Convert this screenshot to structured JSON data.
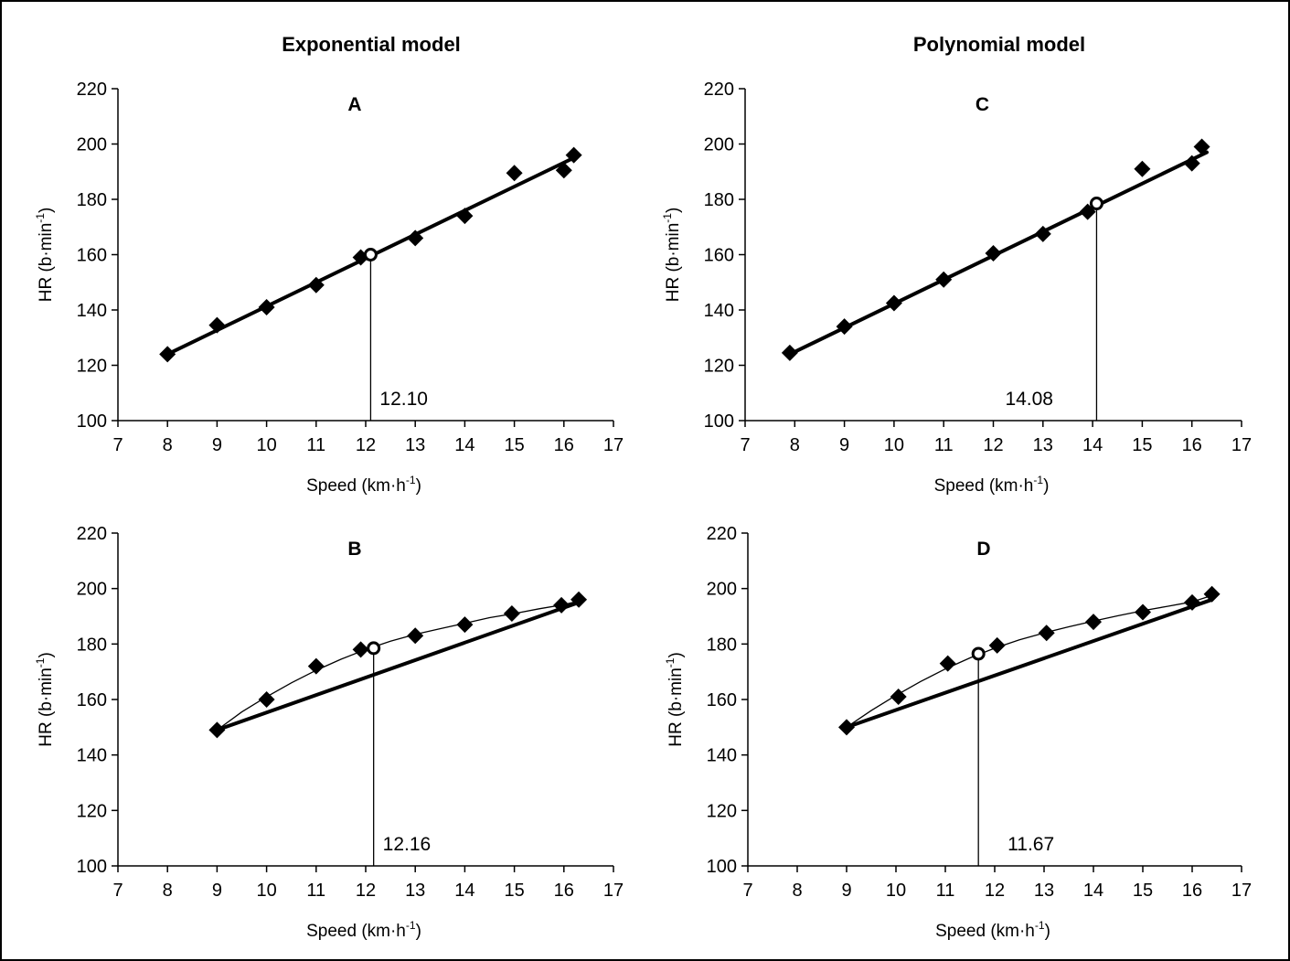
{
  "column_titles": [
    "Exponential model",
    "Polynomial model"
  ],
  "colors": {
    "ink": "#000000",
    "background": "#ffffff"
  },
  "chart_data": [
    {
      "type": "scatter",
      "panel": "A",
      "column": 0,
      "xlabel": "Speed (km·h",
      "xlabel_sup": "-1",
      "ylabel": "HR (b·min",
      "ylabel_sup": "-1",
      "xlim": [
        7,
        17
      ],
      "ylim": [
        100,
        220
      ],
      "xticks": [
        7,
        8,
        9,
        10,
        11,
        12,
        13,
        14,
        15,
        16,
        17
      ],
      "yticks": [
        100,
        120,
        140,
        160,
        180,
        200,
        220
      ],
      "points": [
        [
          8,
          124
        ],
        [
          9,
          134.5
        ],
        [
          10,
          141
        ],
        [
          11,
          149
        ],
        [
          11.9,
          159
        ],
        [
          13,
          166
        ],
        [
          14,
          174
        ],
        [
          15,
          189.5
        ],
        [
          16,
          190.5
        ],
        [
          16.2,
          196
        ]
      ],
      "linear_fit": [
        [
          8,
          124
        ],
        [
          16.2,
          195
        ]
      ],
      "curve": [],
      "threshold": {
        "x": 12.1,
        "y": 160,
        "label": "12.10"
      }
    },
    {
      "type": "scatter",
      "panel": "B",
      "column": 0,
      "xlabel": "Speed (km·h",
      "xlabel_sup": "-1",
      "ylabel": "HR (b·min",
      "ylabel_sup": "-1",
      "xlim": [
        7,
        17
      ],
      "ylim": [
        100,
        220
      ],
      "xticks": [
        7,
        8,
        9,
        10,
        11,
        12,
        13,
        14,
        15,
        16,
        17
      ],
      "yticks": [
        100,
        120,
        140,
        160,
        180,
        200,
        220
      ],
      "points": [
        [
          9,
          149
        ],
        [
          10,
          160
        ],
        [
          11,
          172
        ],
        [
          11.9,
          178
        ],
        [
          13,
          183
        ],
        [
          14,
          187
        ],
        [
          14.95,
          191
        ],
        [
          15.95,
          194
        ],
        [
          16.3,
          196
        ]
      ],
      "linear_fit": [
        [
          9,
          149
        ],
        [
          16.3,
          195
        ]
      ],
      "curve": [
        [
          9,
          149
        ],
        [
          9.5,
          155.5
        ],
        [
          10,
          161
        ],
        [
          10.5,
          166
        ],
        [
          11,
          170.5
        ],
        [
          11.5,
          174.5
        ],
        [
          12,
          178
        ],
        [
          12.5,
          181
        ],
        [
          13,
          183.5
        ],
        [
          13.5,
          185.5
        ],
        [
          14,
          187.5
        ],
        [
          14.5,
          189.5
        ],
        [
          15,
          191
        ],
        [
          15.5,
          192.7
        ],
        [
          16,
          194.2
        ],
        [
          16.3,
          195.5
        ]
      ],
      "threshold": {
        "x": 12.16,
        "y": 178.5,
        "label": "12.16"
      }
    },
    {
      "type": "scatter",
      "panel": "C",
      "column": 1,
      "xlabel": "Speed (km·h",
      "xlabel_sup": "-1",
      "ylabel": "HR (b·min",
      "ylabel_sup": "-1",
      "xlim": [
        7,
        17
      ],
      "ylim": [
        100,
        220
      ],
      "xticks": [
        7,
        8,
        9,
        10,
        11,
        12,
        13,
        14,
        15,
        16,
        17
      ],
      "yticks": [
        100,
        120,
        140,
        160,
        180,
        200,
        220
      ],
      "points": [
        [
          7.9,
          124.5
        ],
        [
          9,
          134
        ],
        [
          10,
          142.5
        ],
        [
          11,
          151
        ],
        [
          12,
          160.5
        ],
        [
          13,
          167.5
        ],
        [
          13.9,
          175.5
        ],
        [
          15,
          191
        ],
        [
          16,
          193
        ],
        [
          16.2,
          199
        ]
      ],
      "linear_fit": [
        [
          7.9,
          124
        ],
        [
          16.3,
          197
        ]
      ],
      "curve": [],
      "threshold": {
        "x": 14.08,
        "y": 178.5,
        "label": "14.08"
      }
    },
    {
      "type": "scatter",
      "panel": "D",
      "column": 1,
      "xlabel": "Speed (km·h",
      "xlabel_sup": "-1",
      "ylabel": "HR (b·min",
      "ylabel_sup": "-1",
      "xlim": [
        7,
        17
      ],
      "ylim": [
        100,
        220
      ],
      "xticks": [
        7,
        8,
        9,
        10,
        11,
        12,
        13,
        14,
        15,
        16,
        17
      ],
      "yticks": [
        100,
        120,
        140,
        160,
        180,
        200,
        220
      ],
      "points": [
        [
          9,
          150
        ],
        [
          10.05,
          161
        ],
        [
          11.05,
          173
        ],
        [
          12.05,
          179.5
        ],
        [
          13.05,
          184
        ],
        [
          14,
          188
        ],
        [
          15,
          191.5
        ],
        [
          16,
          195
        ],
        [
          16.4,
          198
        ]
      ],
      "linear_fit": [
        [
          9,
          150
        ],
        [
          16.4,
          196
        ]
      ],
      "curve": [
        [
          9,
          150
        ],
        [
          9.5,
          156
        ],
        [
          10,
          161.5
        ],
        [
          10.5,
          166.5
        ],
        [
          11,
          171
        ],
        [
          11.5,
          175
        ],
        [
          12,
          178.5
        ],
        [
          12.5,
          181.5
        ],
        [
          13,
          184
        ],
        [
          13.5,
          186.2
        ],
        [
          14,
          188.3
        ],
        [
          14.5,
          190.2
        ],
        [
          15,
          192
        ],
        [
          15.5,
          193.6
        ],
        [
          16,
          195.2
        ],
        [
          16.4,
          197.5
        ]
      ],
      "threshold": {
        "x": 11.67,
        "y": 176.5,
        "label": "11.67"
      }
    }
  ]
}
